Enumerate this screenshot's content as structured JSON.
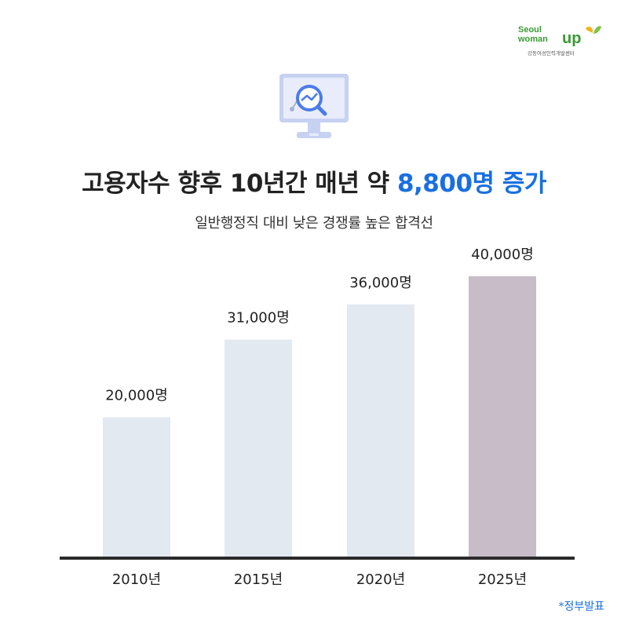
{
  "logo": {
    "line1": "Seoul",
    "line2": "woman",
    "brand": "up",
    "sub": "강동여성인력개발센터"
  },
  "icons": {
    "header": "monitor-search-icon"
  },
  "headline": {
    "main": "고용자수 향후 10년간 매년 약 ",
    "highlight": "8,800명 증가"
  },
  "subtitle": "일반행정직 대비 낮은 경쟁률 높은 합격선",
  "source": "*정부발표",
  "colors": {
    "accent": "#1a6fe0",
    "bar": "#e3e9f1",
    "bar_highlight": "#c8bcc9",
    "baseline": "#2a2a2a",
    "logo_green": "#3a9b35"
  },
  "chart_data": {
    "type": "bar",
    "categories": [
      "2010년",
      "2015년",
      "2020년",
      "2025년"
    ],
    "values": [
      20000,
      31000,
      36000,
      40000
    ],
    "data_labels": [
      "20,000명",
      "31,000명",
      "36,000명",
      "40,000명"
    ],
    "highlight_index": 3,
    "ylim": [
      0,
      48000
    ],
    "grid": false,
    "title": "",
    "xlabel": "",
    "ylabel": ""
  }
}
